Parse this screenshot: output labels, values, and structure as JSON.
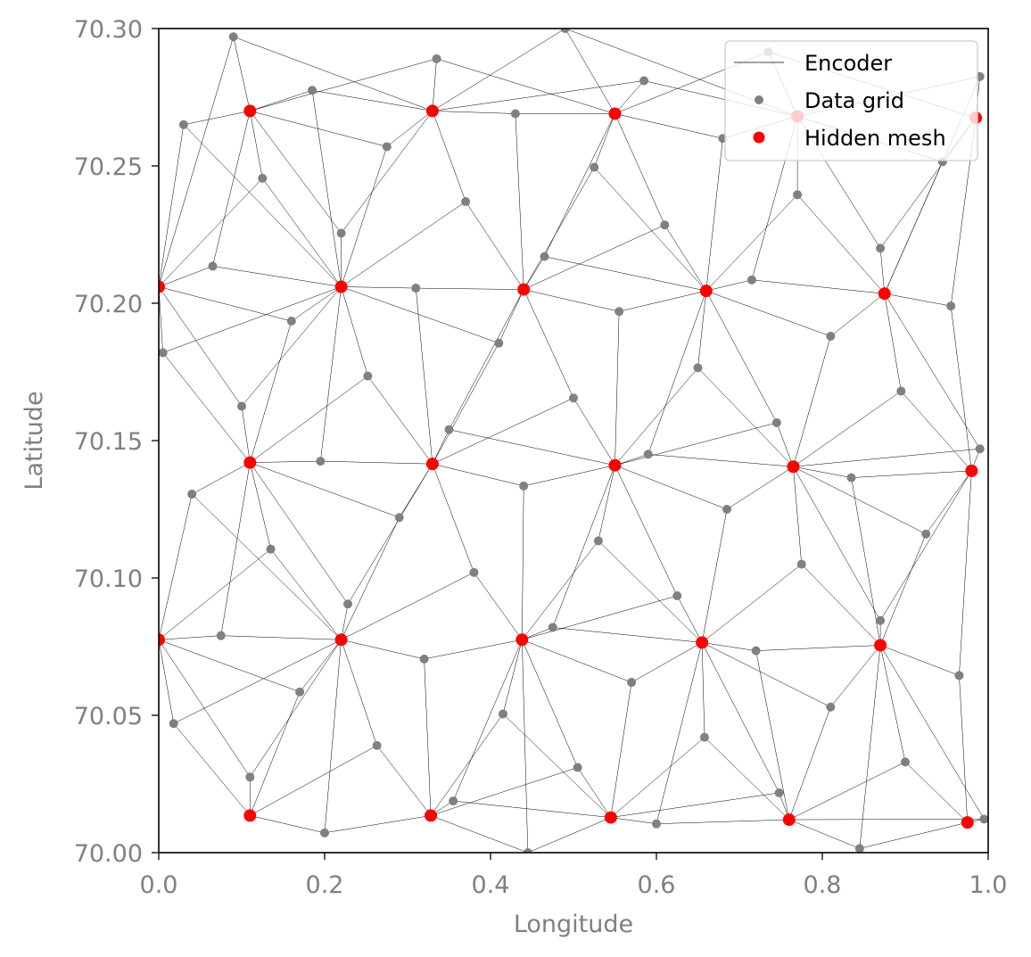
{
  "chart_data": {
    "type": "scatter",
    "title": "",
    "xlabel": "Longitude",
    "ylabel": "Latitude",
    "xlim": [
      0.0,
      1.0
    ],
    "ylim": [
      70.0,
      70.3
    ],
    "x_ticks": [
      "0.0",
      "0.2",
      "0.4",
      "0.6",
      "0.8",
      "1.0"
    ],
    "y_ticks": [
      "70.00",
      "70.05",
      "70.10",
      "70.15",
      "70.20",
      "70.25",
      "70.30"
    ],
    "grid": false,
    "legend": {
      "placement": "top-right",
      "entries": [
        {
          "label": "Encoder",
          "kind": "line",
          "color": "#000000"
        },
        {
          "label": "Data grid",
          "kind": "marker",
          "color": "#808080"
        },
        {
          "label": "Hidden mesh",
          "kind": "marker",
          "color": "#ff0000"
        }
      ]
    },
    "colors": {
      "encoder": "#000000",
      "data_grid": "#808080",
      "hidden_mesh": "#ff0000"
    },
    "series": [
      {
        "name": "Hidden mesh",
        "points": [
          [
            0.0,
            70.206
          ],
          [
            0.11,
            70.27
          ],
          [
            0.22,
            70.206
          ],
          [
            0.33,
            70.27
          ],
          [
            0.44,
            70.205
          ],
          [
            0.55,
            70.269
          ],
          [
            0.66,
            70.2045
          ],
          [
            0.77,
            70.268
          ],
          [
            0.875,
            70.2035
          ],
          [
            0.985,
            70.2675
          ],
          [
            0.11,
            70.142
          ],
          [
            0.33,
            70.1415
          ],
          [
            0.55,
            70.141
          ],
          [
            0.765,
            70.1405
          ],
          [
            0.98,
            70.139
          ],
          [
            0.0,
            70.0775
          ],
          [
            0.22,
            70.0775
          ],
          [
            0.438,
            70.0775
          ],
          [
            0.655,
            70.0765
          ],
          [
            0.87,
            70.0755
          ],
          [
            0.11,
            70.0135
          ],
          [
            0.328,
            70.0135
          ],
          [
            0.545,
            70.0128
          ],
          [
            0.76,
            70.012
          ],
          [
            0.975,
            70.011
          ]
        ]
      },
      {
        "name": "Data grid",
        "points": [
          [
            0.09,
            70.297
          ],
          [
            0.03,
            70.265
          ],
          [
            0.125,
            70.2455
          ],
          [
            0.185,
            70.2775
          ],
          [
            0.275,
            70.257
          ],
          [
            0.335,
            70.289
          ],
          [
            0.37,
            70.237
          ],
          [
            0.43,
            70.269
          ],
          [
            0.49,
            70.3
          ],
          [
            0.525,
            70.2495
          ],
          [
            0.585,
            70.281
          ],
          [
            0.61,
            70.2285
          ],
          [
            0.68,
            70.26
          ],
          [
            0.735,
            70.2915
          ],
          [
            0.77,
            70.2395
          ],
          [
            0.945,
            70.2515
          ],
          [
            0.99,
            70.2825
          ],
          [
            0.87,
            70.22
          ],
          [
            0.065,
            70.2135
          ],
          [
            0.16,
            70.1935
          ],
          [
            0.22,
            70.2255
          ],
          [
            0.31,
            70.2055
          ],
          [
            0.41,
            70.1855
          ],
          [
            0.465,
            70.217
          ],
          [
            0.555,
            70.197
          ],
          [
            0.715,
            70.2085
          ],
          [
            0.81,
            70.188
          ],
          [
            0.955,
            70.199
          ],
          [
            0.005,
            70.182
          ],
          [
            0.1,
            70.1625
          ],
          [
            0.252,
            70.1735
          ],
          [
            0.35,
            70.154
          ],
          [
            0.5,
            70.1655
          ],
          [
            0.65,
            70.1765
          ],
          [
            0.745,
            70.1565
          ],
          [
            0.895,
            70.168
          ],
          [
            0.99,
            70.147
          ],
          [
            0.04,
            70.1305
          ],
          [
            0.195,
            70.1425
          ],
          [
            0.29,
            70.122
          ],
          [
            0.44,
            70.1335
          ],
          [
            0.59,
            70.145
          ],
          [
            0.685,
            70.125
          ],
          [
            0.835,
            70.1365
          ],
          [
            0.135,
            70.1105
          ],
          [
            0.38,
            70.102
          ],
          [
            0.53,
            70.1135
          ],
          [
            0.625,
            70.0935
          ],
          [
            0.775,
            70.105
          ],
          [
            0.925,
            70.116
          ],
          [
            0.075,
            70.079
          ],
          [
            0.228,
            70.0905
          ],
          [
            0.32,
            70.0705
          ],
          [
            0.475,
            70.082
          ],
          [
            0.57,
            70.062
          ],
          [
            0.72,
            70.0735
          ],
          [
            0.87,
            70.0845
          ],
          [
            0.965,
            70.0645
          ],
          [
            0.018,
            70.047
          ],
          [
            0.17,
            70.0585
          ],
          [
            0.263,
            70.039
          ],
          [
            0.415,
            70.0505
          ],
          [
            0.505,
            70.031
          ],
          [
            0.658,
            70.042
          ],
          [
            0.81,
            70.053
          ],
          [
            0.9,
            70.033
          ],
          [
            0.11,
            70.0275
          ],
          [
            0.2,
            70.0072
          ],
          [
            0.355,
            70.0188
          ],
          [
            0.6,
            70.0105
          ],
          [
            0.748,
            70.0218
          ],
          [
            0.845,
            70.0015
          ],
          [
            0.995,
            70.0122
          ],
          [
            0.445,
            70.0
          ]
        ]
      }
    ]
  }
}
